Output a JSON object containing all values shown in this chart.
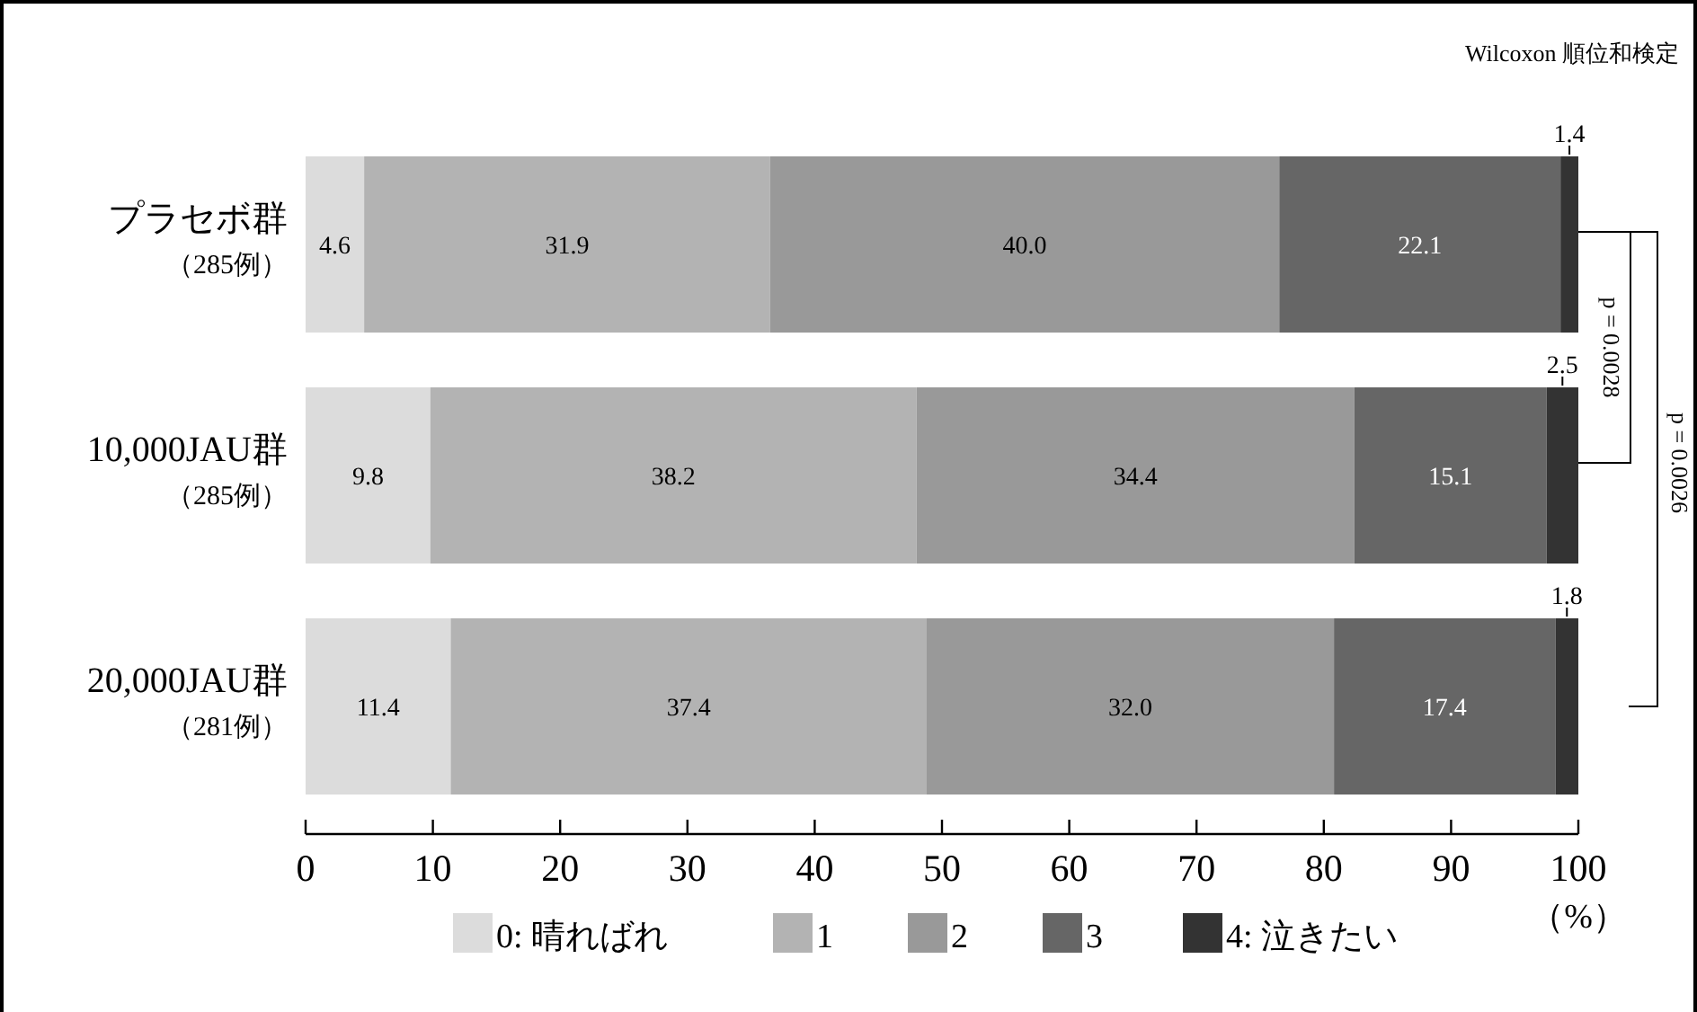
{
  "chart_data": {
    "type": "bar",
    "orientation": "horizontal",
    "stacked": true,
    "legend": "bottom",
    "grid": false,
    "categories": [
      "プラセボ群（285例）",
      "10,000JAU群（285例）",
      "20,000JAU群（281例）"
    ],
    "series": [
      {
        "name": "0: 晴ればれ",
        "color": "#dcdcdc",
        "values": [
          4.6,
          9.8,
          11.4
        ],
        "value_labels": [
          "4.6",
          "9.8",
          "11.4"
        ]
      },
      {
        "name": "1",
        "color": "#b3b3b3",
        "values": [
          31.9,
          38.2,
          37.4
        ],
        "value_labels": [
          "31.9",
          "38.2",
          "37.4"
        ]
      },
      {
        "name": "2",
        "color": "#999999",
        "values": [
          40.0,
          34.4,
          32.0
        ],
        "value_labels": [
          "40.0",
          "34.4",
          "32.0"
        ]
      },
      {
        "name": "3",
        "color": "#666666",
        "values": [
          22.1,
          15.1,
          17.4
        ],
        "value_labels": [
          "22.1",
          "15.1",
          "17.4"
        ]
      },
      {
        "name": "4: 泣きたい",
        "color": "#333333",
        "values": [
          1.4,
          2.5,
          1.8
        ],
        "value_labels": [
          "1.4",
          "2.5",
          "1.8"
        ]
      }
    ],
    "xlim": [
      0,
      100
    ],
    "xticks": [
      0,
      10,
      20,
      30,
      40,
      50,
      60,
      70,
      80,
      90,
      100
    ],
    "xlabel": "（%）",
    "annotations": [
      "Wilcoxon 順位和検定",
      "p = 0.0028",
      "p = 0.0026"
    ]
  }
}
